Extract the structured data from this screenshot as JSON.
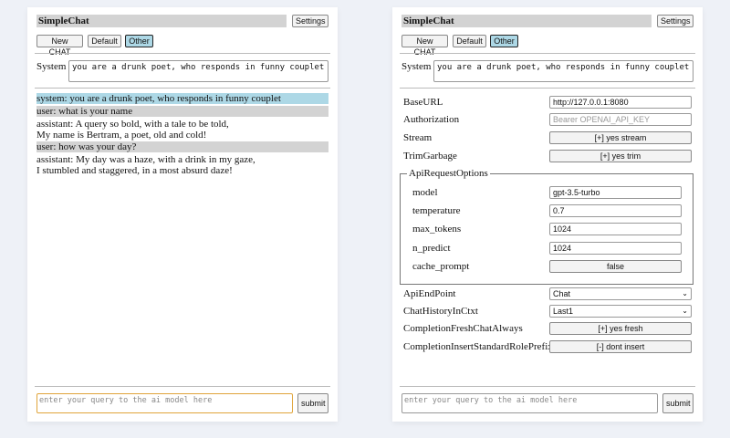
{
  "app_title": "SimpleChat",
  "settings_label": "Settings",
  "chat_buttons": [
    "New CHAT",
    "Default",
    "Other"
  ],
  "system_label": "System",
  "system_prompt": "you are a drunk poet, who responds in funny couplet",
  "messages": [
    {
      "role": "system",
      "text": "system: you are a drunk poet, who responds in funny couplet"
    },
    {
      "role": "user",
      "text": "user: what is your name"
    },
    {
      "role": "assistant",
      "text": "assistant: A query so bold, with a tale to be told,\nMy name is Bertram, a poet, old and cold!"
    },
    {
      "role": "user",
      "text": "user: how was your day?"
    },
    {
      "role": "assistant",
      "text": "assistant: My day was a haze, with a drink in my gaze,\nI stumbled and staggered, in a most absurd daze!"
    }
  ],
  "query_placeholder": "enter your query to the ai model here",
  "submit_label": "submit",
  "settings": {
    "base_url": {
      "label": "BaseURL",
      "value": "http://127.0.0.1:8080"
    },
    "authorization": {
      "label": "Authorization",
      "placeholder": "Bearer OPENAI_API_KEY"
    },
    "stream": {
      "label": "Stream",
      "value": "[+] yes stream"
    },
    "trim_garbage": {
      "label": "TrimGarbage",
      "value": "[+] yes trim"
    },
    "api_request_options": {
      "legend": "ApiRequestOptions",
      "model": {
        "label": "model",
        "value": "gpt-3.5-turbo"
      },
      "temperature": {
        "label": "temperature",
        "value": "0.7"
      },
      "max_tokens": {
        "label": "max_tokens",
        "value": "1024"
      },
      "n_predict": {
        "label": "n_predict",
        "value": "1024"
      },
      "cache_prompt": {
        "label": "cache_prompt",
        "value": "false"
      }
    },
    "api_endpoint": {
      "label": "ApiEndPoint",
      "value": "Chat"
    },
    "chat_history": {
      "label": "ChatHistoryInCtxt",
      "value": "Last1"
    },
    "fresh_chat": {
      "label": "CompletionFreshChatAlways",
      "value": "[+] yes fresh"
    },
    "insert_prefix": {
      "label": "CompletionInsertStandardRolePrefix",
      "value": "[-] dont insert"
    }
  }
}
